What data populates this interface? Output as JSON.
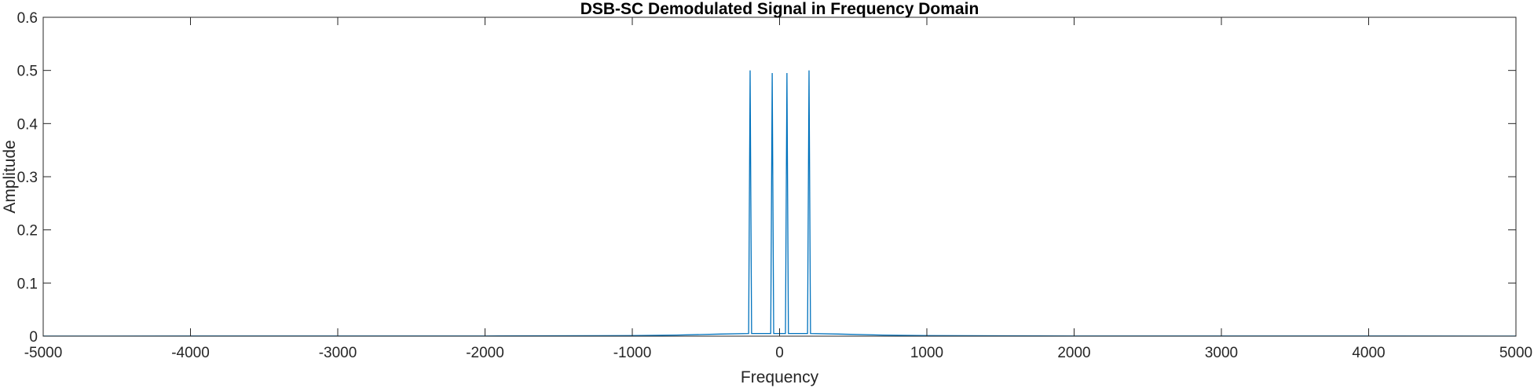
{
  "chart_data": {
    "type": "line",
    "title": "DSB-SC Demodulated Signal in Frequency Domain",
    "xlabel": "Frequency",
    "ylabel": "Amplitude",
    "xlim": [
      -5000,
      5000
    ],
    "ylim": [
      0,
      0.6
    ],
    "xticks": [
      -5000,
      -4000,
      -3000,
      -2000,
      -1000,
      0,
      1000,
      2000,
      3000,
      4000,
      5000
    ],
    "xtick_labels": [
      "-5000",
      "-4000",
      "-3000",
      "-2000",
      "-1000",
      "0",
      "1000",
      "2000",
      "3000",
      "4000",
      "5000"
    ],
    "yticks": [
      0,
      0.1,
      0.2,
      0.3,
      0.4,
      0.5,
      0.6
    ],
    "ytick_labels": [
      "0",
      "0.1",
      "0.2",
      "0.3",
      "0.4",
      "0.5",
      "0.6"
    ],
    "grid": false,
    "series": [
      {
        "color": "#0072BD",
        "x": [
          -5000,
          -3000,
          -2000,
          -1000,
          -700,
          -400,
          -210,
          -200,
          -190,
          -60,
          -50,
          -40,
          40,
          50,
          60,
          190,
          200,
          210,
          400,
          700,
          1000,
          2000,
          3000,
          5000
        ],
        "y": [
          0.0002,
          0.0003,
          0.0004,
          0.001,
          0.002,
          0.004,
          0.005,
          0.5,
          0.005,
          0.005,
          0.495,
          0.005,
          0.005,
          0.495,
          0.005,
          0.005,
          0.5,
          0.005,
          0.004,
          0.002,
          0.001,
          0.0004,
          0.0003,
          0.0002
        ]
      }
    ]
  }
}
